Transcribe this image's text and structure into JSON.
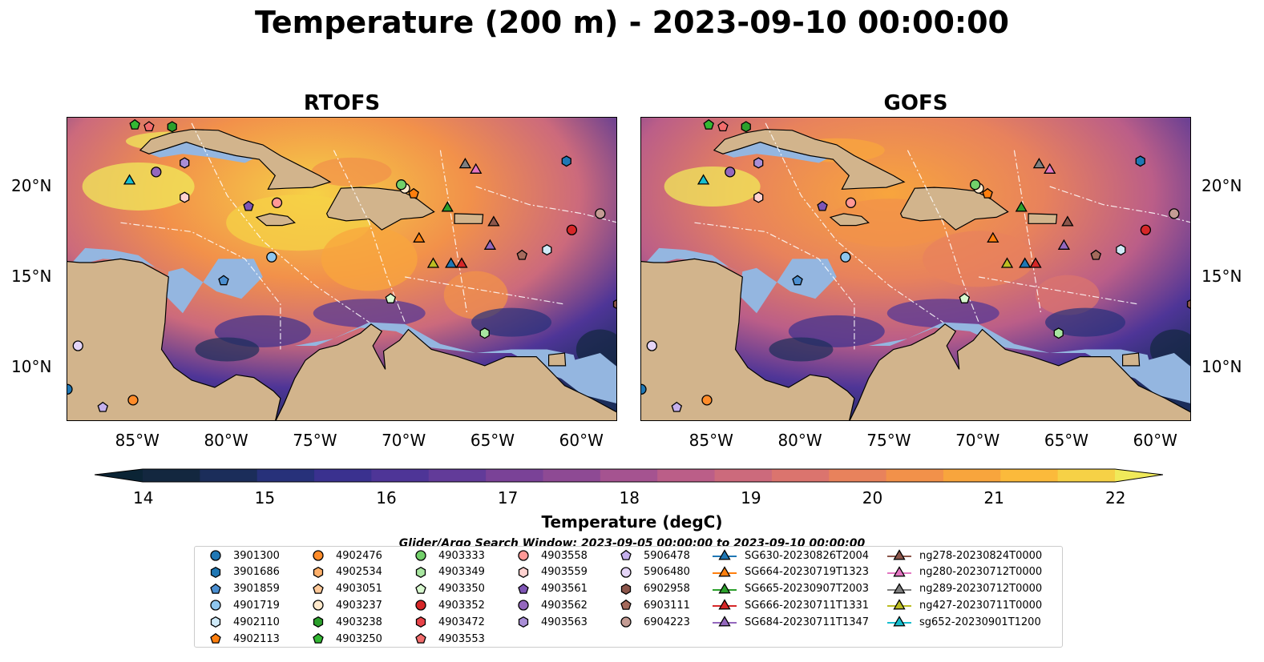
{
  "figure": {
    "title": "Temperature (200 m) - 2023-09-10 00:00:00"
  },
  "panels": [
    {
      "id": "rtofs",
      "title": "RTOFS"
    },
    {
      "id": "gofs",
      "title": "GOFS"
    }
  ],
  "axes": {
    "x_ticks": [
      "85°W",
      "80°W",
      "75°W",
      "70°W",
      "65°W",
      "60°W"
    ],
    "y_ticks": [
      "20°N",
      "15°N",
      "10°N"
    ]
  },
  "colorbar": {
    "label": "Temperature (degC)",
    "ticks": [
      "14",
      "15",
      "16",
      "17",
      "18",
      "19",
      "20",
      "21",
      "22"
    ],
    "range": [
      14,
      22
    ],
    "extend": "both",
    "colors": [
      "#0b2435",
      "#13273f",
      "#1b2d5a",
      "#27317a",
      "#3a318f",
      "#4e3597",
      "#623b99",
      "#7a4297",
      "#8e4a94",
      "#a55390",
      "#bb5e88",
      "#cc6a7c",
      "#db746e",
      "#e8825c",
      "#f2914a",
      "#f8a53d",
      "#fbba3b",
      "#f6d146",
      "#f0ea5a"
    ]
  },
  "land_color": "#d2b48c",
  "shelf_color": "#94b6e0",
  "search_window": "Glider/Argo Search Window: 2023-09-05 00:00:00 to 2023-09-10 00:00:00",
  "legend": {
    "items": [
      {
        "label": "3901300",
        "marker": "circle",
        "color": "#1f77b4"
      },
      {
        "label": "3901686",
        "marker": "hexagon",
        "color": "#1f77b4"
      },
      {
        "label": "3901859",
        "marker": "pentagon",
        "color": "#4b8fd1"
      },
      {
        "label": "4901719",
        "marker": "circle",
        "color": "#8ec6ee"
      },
      {
        "label": "4902110",
        "marker": "hexagon",
        "color": "#cfeaf8"
      },
      {
        "label": "4902113",
        "marker": "pentagon",
        "color": "#ff7f0e"
      },
      {
        "label": "4902476",
        "marker": "circle",
        "color": "#ff8c2a"
      },
      {
        "label": "4902534",
        "marker": "hexagon",
        "color": "#ffb06a"
      },
      {
        "label": "4903051",
        "marker": "pentagon",
        "color": "#ffc999"
      },
      {
        "label": "4903237",
        "marker": "circle",
        "color": "#ffe9cc"
      },
      {
        "label": "4903238",
        "marker": "hexagon",
        "color": "#2ca02c"
      },
      {
        "label": "4903250",
        "marker": "pentagon",
        "color": "#33b833"
      },
      {
        "label": "4903333",
        "marker": "circle",
        "color": "#72d06a"
      },
      {
        "label": "4903349",
        "marker": "hexagon",
        "color": "#a8e6a0"
      },
      {
        "label": "4903350",
        "marker": "pentagon",
        "color": "#d8f8cf"
      },
      {
        "label": "4903352",
        "marker": "circle",
        "color": "#d62728"
      },
      {
        "label": "4903472",
        "marker": "hexagon",
        "color": "#e8444a"
      },
      {
        "label": "4903553",
        "marker": "pentagon",
        "color": "#f26d6d"
      },
      {
        "label": "4903558",
        "marker": "circle",
        "color": "#ff9896"
      },
      {
        "label": "4903559",
        "marker": "hexagon",
        "color": "#ffd2d0"
      },
      {
        "label": "4903561",
        "marker": "pentagon",
        "color": "#7e55b5"
      },
      {
        "label": "4903562",
        "marker": "circle",
        "color": "#9467bd"
      },
      {
        "label": "4903563",
        "marker": "hexagon",
        "color": "#a98ed6"
      },
      {
        "label": "5906478",
        "marker": "pentagon",
        "color": "#c5b0ed"
      },
      {
        "label": "5906480",
        "marker": "circle",
        "color": "#e4d4f7"
      },
      {
        "label": "6902958",
        "marker": "hexagon",
        "color": "#8c564b"
      },
      {
        "label": "6903111",
        "marker": "pentagon",
        "color": "#a56a5c"
      },
      {
        "label": "6904223",
        "marker": "circle",
        "color": "#c49c94"
      },
      {
        "label": "SG630-20230826T2004",
        "marker": "triangle",
        "color": "#1f77b4"
      },
      {
        "label": "SG664-20230719T1323",
        "marker": "triangle",
        "color": "#ff7f0e"
      },
      {
        "label": "SG665-20230907T2003",
        "marker": "triangle",
        "color": "#2ca02c"
      },
      {
        "label": "SG666-20230711T1331",
        "marker": "triangle",
        "color": "#d62728"
      },
      {
        "label": "SG684-20230711T1347",
        "marker": "triangle",
        "color": "#9467bd"
      },
      {
        "label": "ng278-20230824T0000",
        "marker": "triangle",
        "color": "#8c564b"
      },
      {
        "label": "ng280-20230712T0000",
        "marker": "triangle",
        "color": "#e377c2"
      },
      {
        "label": "ng289-20230712T0000",
        "marker": "triangle",
        "color": "#7f7f7f"
      },
      {
        "label": "ng427-20230711T0000",
        "marker": "triangle",
        "color": "#bcbd22"
      },
      {
        "label": "sg652-20230901T1200",
        "marker": "triangle",
        "color": "#17becf"
      }
    ]
  },
  "observations": [
    {
      "label": "3901300",
      "lon": -89.0,
      "lat": 8.8
    },
    {
      "label": "3901686",
      "lon": -60.9,
      "lat": 21.4
    },
    {
      "label": "3901859",
      "lon": -80.2,
      "lat": 14.8
    },
    {
      "label": "4901719",
      "lon": -77.5,
      "lat": 16.1
    },
    {
      "label": "4902110",
      "lon": -62.0,
      "lat": 16.5
    },
    {
      "label": "4902113",
      "lon": -69.5,
      "lat": 19.6
    },
    {
      "label": "4902476",
      "lon": -85.3,
      "lat": 8.2
    },
    {
      "label": "4903237",
      "lon": -70.0,
      "lat": 19.9
    },
    {
      "label": "4903238",
      "lon": -83.1,
      "lat": 23.3
    },
    {
      "label": "4903250",
      "lon": -85.2,
      "lat": 23.4
    },
    {
      "label": "4903333",
      "lon": -70.2,
      "lat": 20.1
    },
    {
      "label": "4903349",
      "lon": -65.5,
      "lat": 11.9
    },
    {
      "label": "4903350",
      "lon": -70.8,
      "lat": 13.8
    },
    {
      "label": "4903352",
      "lon": -60.6,
      "lat": 17.6
    },
    {
      "label": "4903553",
      "lon": -84.4,
      "lat": 23.3
    },
    {
      "label": "4903558",
      "lon": -77.2,
      "lat": 19.1
    },
    {
      "label": "4903559",
      "lon": -82.4,
      "lat": 19.4
    },
    {
      "label": "4903561",
      "lon": -78.8,
      "lat": 18.9
    },
    {
      "label": "4903562",
      "lon": -84.0,
      "lat": 20.8
    },
    {
      "label": "4903563",
      "lon": -82.4,
      "lat": 21.3
    },
    {
      "label": "5906478",
      "lon": -87.0,
      "lat": 7.8
    },
    {
      "label": "5906480",
      "lon": -88.4,
      "lat": 11.2
    },
    {
      "label": "6902958",
      "lon": -58.0,
      "lat": 13.5
    },
    {
      "label": "6903111",
      "lon": -63.4,
      "lat": 16.2
    },
    {
      "label": "6904223",
      "lon": -59.0,
      "lat": 18.5
    },
    {
      "label": "SG630-20230826T2004",
      "lon": -67.4,
      "lat": 15.7
    },
    {
      "label": "SG664-20230719T1323",
      "lon": -69.2,
      "lat": 17.1
    },
    {
      "label": "SG665-20230907T2003",
      "lon": -67.6,
      "lat": 18.8
    },
    {
      "label": "SG666-20230711T1331",
      "lon": -66.8,
      "lat": 15.7
    },
    {
      "label": "SG684-20230711T1347",
      "lon": -65.2,
      "lat": 16.7
    },
    {
      "label": "ng278-20230824T0000",
      "lon": -65.0,
      "lat": 18.0
    },
    {
      "label": "ng280-20230712T0000",
      "lon": -66.0,
      "lat": 20.9
    },
    {
      "label": "ng289-20230712T0000",
      "lon": -66.6,
      "lat": 21.2
    },
    {
      "label": "ng427-20230711T0000",
      "lon": -68.4,
      "lat": 15.7
    },
    {
      "label": "sg652-20230901T1200",
      "lon": -85.5,
      "lat": 20.3
    }
  ]
}
